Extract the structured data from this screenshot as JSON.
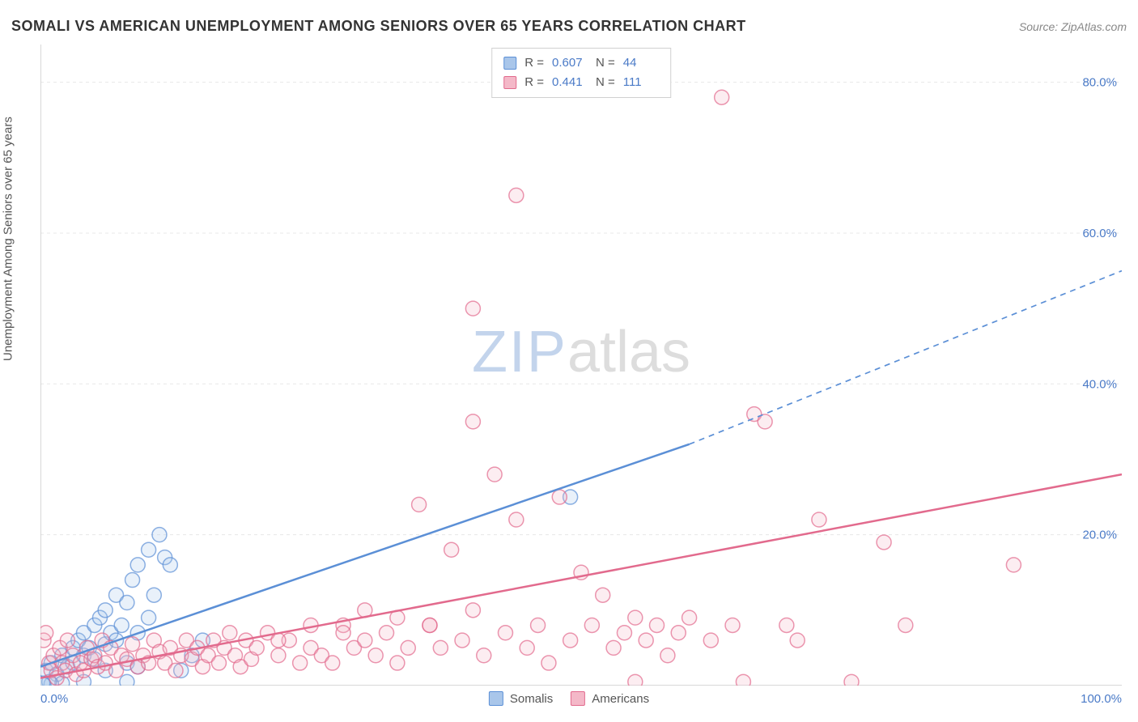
{
  "title": "SOMALI VS AMERICAN UNEMPLOYMENT AMONG SENIORS OVER 65 YEARS CORRELATION CHART",
  "source_label": "Source: ZipAtlas.com",
  "y_axis_label": "Unemployment Among Seniors over 65 years",
  "watermark": {
    "part1": "ZIP",
    "part2": "atlas"
  },
  "chart": {
    "type": "scatter-with-trend",
    "background_color": "#ffffff",
    "grid_color": "#e8e8e8",
    "grid_dash": "4 4",
    "axis_color": "#cccccc",
    "tick_label_color": "#4a7ac7",
    "tick_fontsize": 15,
    "xlim": [
      0,
      100
    ],
    "ylim": [
      0,
      85
    ],
    "xticks": [
      {
        "v": 0,
        "label": "0.0%"
      },
      {
        "v": 100,
        "label": "100.0%"
      }
    ],
    "yticks": [
      {
        "v": 20,
        "label": "20.0%"
      },
      {
        "v": 40,
        "label": "40.0%"
      },
      {
        "v": 60,
        "label": "60.0%"
      },
      {
        "v": 80,
        "label": "80.0%"
      }
    ],
    "marker_radius": 9,
    "marker_stroke_width": 1.5,
    "marker_fill_opacity": 0.25,
    "series": [
      {
        "key": "somalis",
        "label": "Somalis",
        "color": "#5b8fd6",
        "fill": "#a9c6ea",
        "R": "0.607",
        "N": "44",
        "trend": {
          "solid_from": [
            0,
            2.5
          ],
          "solid_to": [
            60,
            32
          ],
          "dashed_from": [
            60,
            32
          ],
          "dashed_to": [
            100,
            55
          ],
          "width": 2.5
        },
        "points": [
          [
            0.5,
            2
          ],
          [
            1,
            3
          ],
          [
            1.5,
            1.5
          ],
          [
            2,
            4
          ],
          [
            2.5,
            2.5
          ],
          [
            3,
            5
          ],
          [
            3,
            3
          ],
          [
            3.5,
            6
          ],
          [
            4,
            4
          ],
          [
            4,
            7
          ],
          [
            4.5,
            5
          ],
          [
            5,
            8
          ],
          [
            5,
            3.5
          ],
          [
            5.5,
            9
          ],
          [
            6,
            5.5
          ],
          [
            6,
            10
          ],
          [
            6.5,
            7
          ],
          [
            7,
            12
          ],
          [
            7,
            6
          ],
          [
            7.5,
            8
          ],
          [
            8,
            11
          ],
          [
            8.5,
            14
          ],
          [
            9,
            16
          ],
          [
            9,
            7
          ],
          [
            10,
            18
          ],
          [
            10,
            9
          ],
          [
            10.5,
            12
          ],
          [
            11,
            20
          ],
          [
            11.5,
            17
          ],
          [
            12,
            16
          ],
          [
            13,
            2
          ],
          [
            14,
            4
          ],
          [
            15,
            6
          ],
          [
            4,
            0.5
          ],
          [
            2,
            0.3
          ],
          [
            1,
            0.2
          ],
          [
            0.8,
            0.5
          ],
          [
            0.3,
            0.1
          ],
          [
            0.2,
            0.3
          ],
          [
            6,
            2
          ],
          [
            8,
            3
          ],
          [
            9,
            2.5
          ],
          [
            49,
            25
          ],
          [
            8,
            0.5
          ]
        ]
      },
      {
        "key": "americans",
        "label": "Americans",
        "color": "#e26a8d",
        "fill": "#f4b8c8",
        "R": "0.441",
        "N": "111",
        "trend": {
          "solid_from": [
            0,
            1
          ],
          "solid_to": [
            100,
            28
          ],
          "dashed_from": null,
          "dashed_to": null,
          "width": 2.5
        },
        "points": [
          [
            0.3,
            6
          ],
          [
            0.5,
            7
          ],
          [
            0.8,
            3
          ],
          [
            1,
            2
          ],
          [
            1.2,
            4
          ],
          [
            1.5,
            1
          ],
          [
            1.8,
            5
          ],
          [
            2,
            3
          ],
          [
            2.3,
            2
          ],
          [
            2.5,
            6
          ],
          [
            3,
            4
          ],
          [
            3.3,
            1.5
          ],
          [
            3.7,
            3
          ],
          [
            4,
            2
          ],
          [
            4.3,
            5
          ],
          [
            4.7,
            3.5
          ],
          [
            5,
            4
          ],
          [
            5.3,
            2.5
          ],
          [
            5.7,
            6
          ],
          [
            6,
            3
          ],
          [
            6.5,
            5
          ],
          [
            7,
            2
          ],
          [
            7.5,
            4
          ],
          [
            8,
            3.5
          ],
          [
            8.5,
            5.5
          ],
          [
            9,
            2.5
          ],
          [
            9.5,
            4
          ],
          [
            10,
            3
          ],
          [
            10.5,
            6
          ],
          [
            11,
            4.5
          ],
          [
            11.5,
            3
          ],
          [
            12,
            5
          ],
          [
            12.5,
            2
          ],
          [
            13,
            4
          ],
          [
            13.5,
            6
          ],
          [
            14,
            3.5
          ],
          [
            14.5,
            5
          ],
          [
            15,
            2.5
          ],
          [
            15.5,
            4
          ],
          [
            16,
            6
          ],
          [
            16.5,
            3
          ],
          [
            17,
            5
          ],
          [
            17.5,
            7
          ],
          [
            18,
            4
          ],
          [
            18.5,
            2.5
          ],
          [
            19,
            6
          ],
          [
            19.5,
            3.5
          ],
          [
            20,
            5
          ],
          [
            21,
            7
          ],
          [
            22,
            4
          ],
          [
            23,
            6
          ],
          [
            24,
            3
          ],
          [
            25,
            5
          ],
          [
            26,
            4
          ],
          [
            27,
            3
          ],
          [
            28,
            8
          ],
          [
            29,
            5
          ],
          [
            30,
            6
          ],
          [
            31,
            4
          ],
          [
            32,
            7
          ],
          [
            33,
            3
          ],
          [
            34,
            5
          ],
          [
            35,
            24
          ],
          [
            36,
            8
          ],
          [
            37,
            5
          ],
          [
            38,
            18
          ],
          [
            39,
            6
          ],
          [
            40,
            35
          ],
          [
            40,
            50
          ],
          [
            41,
            4
          ],
          [
            42,
            28
          ],
          [
            43,
            7
          ],
          [
            44,
            22
          ],
          [
            45,
            5
          ],
          [
            46,
            8
          ],
          [
            47,
            3
          ],
          [
            48,
            25
          ],
          [
            49,
            6
          ],
          [
            50,
            15
          ],
          [
            51,
            8
          ],
          [
            52,
            12
          ],
          [
            53,
            5
          ],
          [
            54,
            7
          ],
          [
            55,
            9
          ],
          [
            56,
            6
          ],
          [
            57,
            8
          ],
          [
            58,
            4
          ],
          [
            59,
            7
          ],
          [
            60,
            9
          ],
          [
            62,
            6
          ],
          [
            64,
            8
          ],
          [
            65,
            0.5
          ],
          [
            66,
            36
          ],
          [
            67,
            35
          ],
          [
            69,
            8
          ],
          [
            70,
            6
          ],
          [
            72,
            22
          ],
          [
            75,
            0.5
          ],
          [
            78,
            19
          ],
          [
            80,
            8
          ],
          [
            63,
            78
          ],
          [
            44,
            65
          ],
          [
            90,
            16
          ],
          [
            55,
            0.5
          ],
          [
            40,
            10
          ],
          [
            36,
            8
          ],
          [
            33,
            9
          ],
          [
            30,
            10
          ],
          [
            28,
            7
          ],
          [
            25,
            8
          ],
          [
            22,
            6
          ]
        ]
      }
    ]
  },
  "legend_bottom": [
    {
      "series": "somalis"
    },
    {
      "series": "americans"
    }
  ]
}
